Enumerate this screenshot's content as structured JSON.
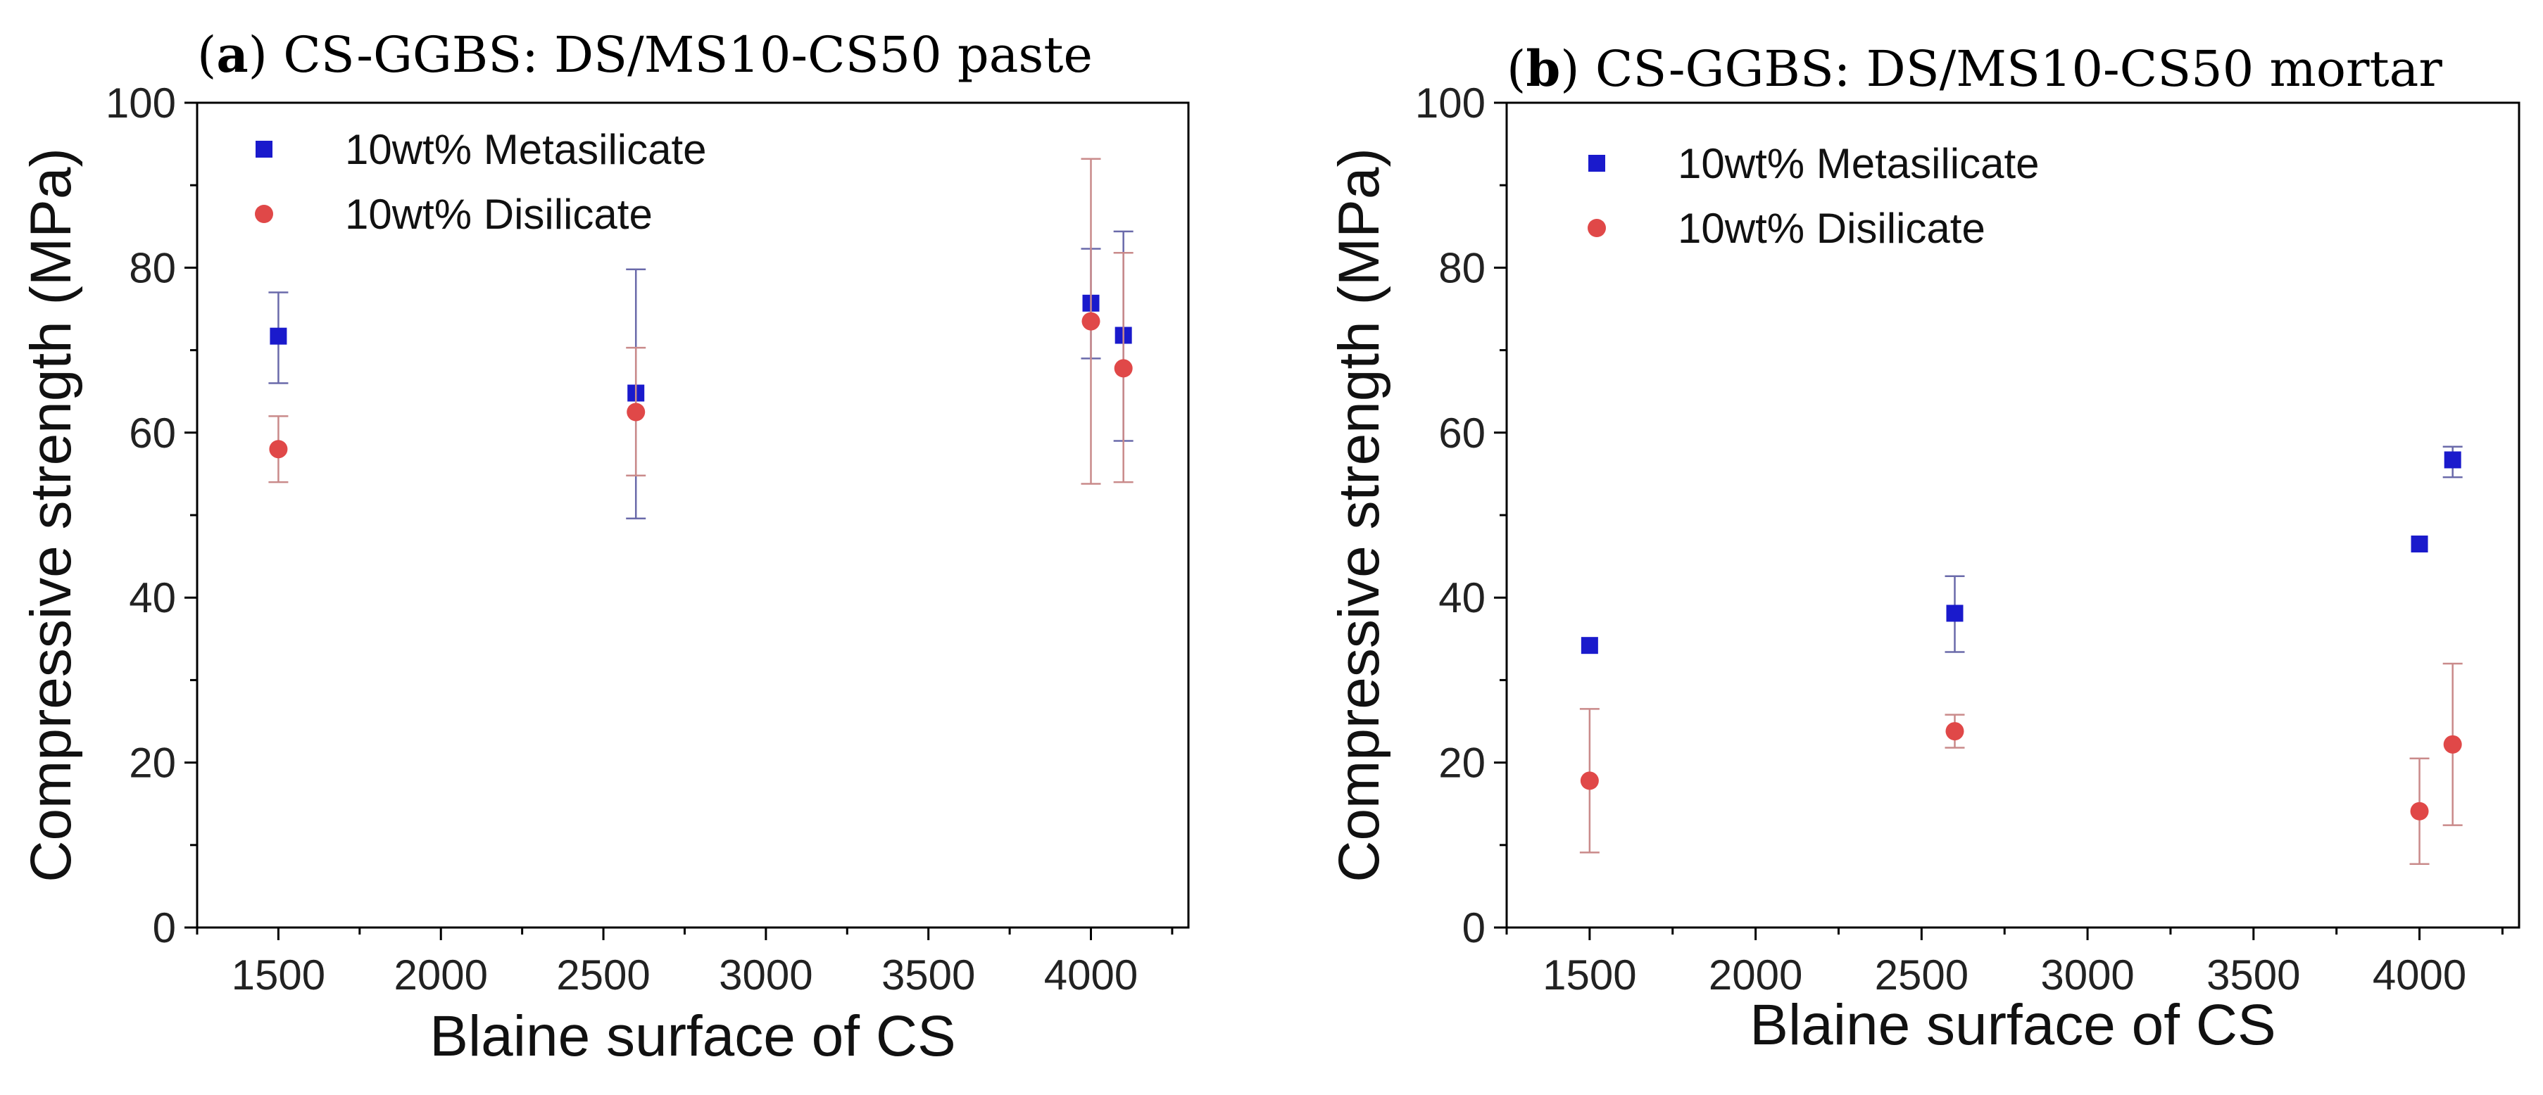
{
  "chart_data": [
    {
      "type": "scatter",
      "panel_letter": "a",
      "title": "CS-GGBS: DS/MS10-CS50 paste",
      "xlabel": "Blaine surface of CS",
      "ylabel": "Compressive strength (MPa)",
      "xlim": [
        1250,
        4300
      ],
      "ylim": [
        0,
        100
      ],
      "xticks": [
        1500,
        2000,
        2500,
        3000,
        3500,
        4000
      ],
      "yticks": [
        0,
        20,
        40,
        60,
        80,
        100
      ],
      "legend_position": "top-left",
      "grid": false,
      "series": [
        {
          "name": "10wt% Metasilicate",
          "marker": "square",
          "color": "#1a1acc",
          "x": [
            1500,
            2600,
            4000,
            4100
          ],
          "y": [
            71.7,
            64.8,
            75.7,
            71.8
          ],
          "err_low": [
            66.0,
            49.6,
            69.0,
            59.0
          ],
          "err_high": [
            77.0,
            79.8,
            82.3,
            84.4
          ],
          "err_color": "#6a6aaa"
        },
        {
          "name": "10wt% Disilicate",
          "marker": "circle",
          "color": "#e04848",
          "x": [
            1500,
            2600,
            4000,
            4100
          ],
          "y": [
            58.0,
            62.5,
            73.5,
            67.8
          ],
          "err_low": [
            54.0,
            54.8,
            53.8,
            54.0
          ],
          "err_high": [
            62.0,
            70.3,
            93.2,
            81.8
          ],
          "err_color": "#c98a8a"
        }
      ]
    },
    {
      "type": "scatter",
      "panel_letter": "b",
      "title": "CS-GGBS: DS/MS10-CS50 mortar",
      "xlabel": "Blaine surface of CS",
      "ylabel": "Compressive strength (MPa)",
      "xlim": [
        1250,
        4300
      ],
      "ylim": [
        0,
        100
      ],
      "xticks": [
        1500,
        2000,
        2500,
        3000,
        3500,
        4000
      ],
      "yticks": [
        0,
        20,
        40,
        60,
        80,
        100
      ],
      "legend_position": "top-left",
      "grid": false,
      "series": [
        {
          "name": "10wt% Metasilicate",
          "marker": "square",
          "color": "#1a1acc",
          "x": [
            1500,
            2600,
            4000,
            4100
          ],
          "y": [
            34.2,
            38.1,
            46.5,
            56.7
          ],
          "err_low": [
            34.2,
            33.4,
            46.5,
            54.6
          ],
          "err_high": [
            34.2,
            42.6,
            46.5,
            58.3
          ],
          "err_color": "#6a6aaa"
        },
        {
          "name": "10wt% Disilicate",
          "marker": "circle",
          "color": "#e04848",
          "x": [
            1500,
            2600,
            4000,
            4100
          ],
          "y": [
            17.8,
            23.8,
            14.1,
            22.2
          ],
          "err_low": [
            9.1,
            21.8,
            7.7,
            12.4
          ],
          "err_high": [
            26.5,
            25.8,
            20.5,
            32.0
          ],
          "err_color": "#c98a8a"
        }
      ]
    }
  ]
}
